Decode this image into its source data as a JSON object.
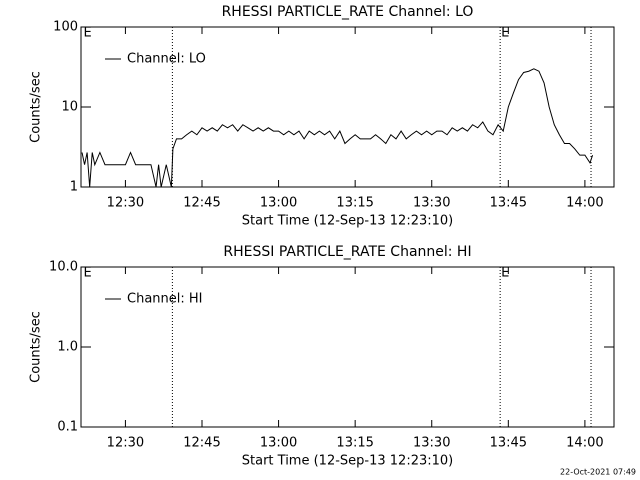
{
  "chart_data": [
    {
      "type": "line",
      "title": "RHESSI PARTICLE_RATE Channel: LO",
      "xlabel": "Start Time (12-Sep-13 12:23:10)",
      "ylabel": "Counts/sec",
      "x": [
        21.5,
        22,
        22.5,
        23,
        23.5,
        24,
        25,
        26,
        28,
        29,
        30,
        31,
        32,
        33,
        34,
        35,
        36,
        36.5,
        37,
        38,
        39,
        39.3,
        40,
        41,
        42,
        43,
        44,
        45,
        46,
        47,
        48,
        49,
        50,
        51,
        52,
        53,
        54,
        55,
        56,
        57,
        58,
        59,
        60,
        61,
        62,
        63,
        64,
        65,
        66,
        67,
        68,
        69,
        70,
        71,
        72,
        73,
        74,
        75,
        76,
        77,
        78,
        79,
        80,
        81,
        82,
        83,
        84,
        85,
        86,
        87,
        88,
        89,
        90,
        91,
        92,
        93,
        94,
        95,
        96,
        97,
        98,
        99,
        100,
        101,
        102,
        103,
        104,
        105,
        106,
        107,
        108,
        109,
        110,
        111,
        112,
        113,
        114,
        115,
        116,
        117,
        118,
        119,
        120,
        121,
        121.5
      ],
      "series": [
        {
          "name": "Channel: LO",
          "color": "#000000",
          "values": [
            2.7,
            1.9,
            2.7,
            1.0,
            2.7,
            1.9,
            2.7,
            1.9,
            1.9,
            1.9,
            1.9,
            2.7,
            1.9,
            1.9,
            1.9,
            1.9,
            1.0,
            1.9,
            1.0,
            1.9,
            1.0,
            3.0,
            4.0,
            4.0,
            4.5,
            5.0,
            4.5,
            5.5,
            5.0,
            5.5,
            5.0,
            6.0,
            5.5,
            6.0,
            5.0,
            6.0,
            5.5,
            5.0,
            5.5,
            5.0,
            5.5,
            5.0,
            5.0,
            4.5,
            5.0,
            4.5,
            5.0,
            4.0,
            5.0,
            4.5,
            5.0,
            4.5,
            5.0,
            4.0,
            5.0,
            3.5,
            4.0,
            4.5,
            4.0,
            4.0,
            4.0,
            4.5,
            4.0,
            3.5,
            4.5,
            4.0,
            5.0,
            4.0,
            4.5,
            5.0,
            4.5,
            5.0,
            4.5,
            5.0,
            5.0,
            4.5,
            5.5,
            5.0,
            5.5,
            5.0,
            6.0,
            5.5,
            6.5,
            5.0,
            4.5,
            6.0,
            5.0,
            10,
            15,
            22,
            27,
            28,
            30,
            28,
            20,
            10,
            6.0,
            4.5,
            3.5,
            3.5,
            3.0,
            2.5,
            2.5,
            2.0,
            2.5
          ]
        }
      ],
      "xlim": [
        21.3,
        125.7
      ],
      "xticks": [
        {
          "value": 30,
          "label": "12:30"
        },
        {
          "value": 45,
          "label": "12:45"
        },
        {
          "value": 60,
          "label": "13:00"
        },
        {
          "value": 75,
          "label": "13:15"
        },
        {
          "value": 90,
          "label": "13:30"
        },
        {
          "value": 105,
          "label": "13:45"
        },
        {
          "value": 120,
          "label": "14:00"
        }
      ],
      "ylim": [
        1,
        100
      ],
      "yticks": [
        1,
        10,
        100
      ],
      "log_y": true,
      "vlines": [
        39.2,
        103.4,
        121.2
      ],
      "event_labels": [
        {
          "x": 21.6,
          "label": "E"
        },
        {
          "x": 103.4,
          "label": "E"
        }
      ]
    },
    {
      "type": "line",
      "title": "RHESSI PARTICLE_RATE Channel: HI",
      "xlabel": "Start Time (12-Sep-13 12:23:10)",
      "ylabel": "Counts/sec",
      "x": [],
      "series": [
        {
          "name": "Channel: HI",
          "color": "#000000",
          "values": []
        }
      ],
      "xlim": [
        21.3,
        125.7
      ],
      "xticks": [
        {
          "value": 30,
          "label": "12:30"
        },
        {
          "value": 45,
          "label": "12:45"
        },
        {
          "value": 60,
          "label": "13:00"
        },
        {
          "value": 75,
          "label": "13:15"
        },
        {
          "value": 90,
          "label": "13:30"
        },
        {
          "value": 105,
          "label": "13:45"
        },
        {
          "value": 120,
          "label": "14:00"
        }
      ],
      "ylim": [
        0.1,
        10
      ],
      "yticks": [
        0.1,
        {
          "value": 1,
          "label": "1.0"
        },
        {
          "value": 10,
          "label": "10.0"
        }
      ],
      "log_y": true,
      "vlines": [
        39.2,
        103.4,
        121.2
      ],
      "event_labels": [
        {
          "x": 21.6,
          "label": "E"
        },
        {
          "x": 103.4,
          "label": "E"
        }
      ]
    }
  ],
  "footer": "22-Oct-2021 07:49"
}
